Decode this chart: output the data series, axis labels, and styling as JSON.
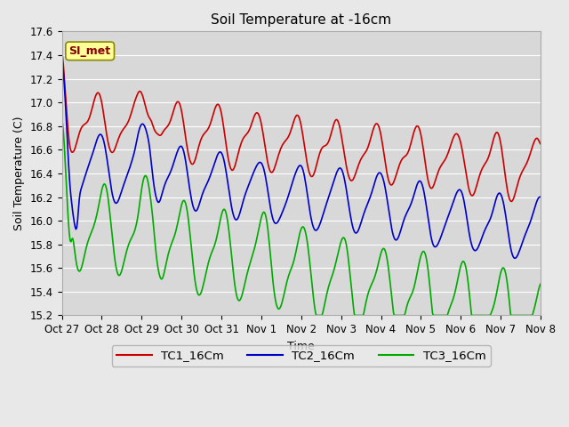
{
  "title": "Soil Temperature at -16cm",
  "xlabel": "Time",
  "ylabel": "Soil Temperature (C)",
  "ylim": [
    15.2,
    17.6
  ],
  "background_color": "#e8e8e8",
  "plot_bg_color": "#d8d8d8",
  "grid_color": "#ffffff",
  "annotation_text": "SI_met",
  "annotation_bg": "#ffff99",
  "annotation_border": "#888800",
  "annotation_text_color": "#880000",
  "x_tick_labels": [
    "Oct 27",
    "Oct 28",
    "Oct 29",
    "Oct 30",
    "Oct 31",
    "Nov 1",
    "Nov 2",
    "Nov 3",
    "Nov 4",
    "Nov 5",
    "Nov 6",
    "Nov 7",
    "Nov 8"
  ],
  "series": {
    "TC1_16Cm": {
      "color": "#cc0000",
      "linewidth": 1.2
    },
    "TC2_16Cm": {
      "color": "#0000cc",
      "linewidth": 1.2
    },
    "TC3_16Cm": {
      "color": "#00aa00",
      "linewidth": 1.2
    }
  },
  "legend_colors": [
    "#cc0000",
    "#0000cc",
    "#00aa00"
  ],
  "legend_labels": [
    "TC1_16Cm",
    "TC2_16Cm",
    "TC3_16Cm"
  ]
}
